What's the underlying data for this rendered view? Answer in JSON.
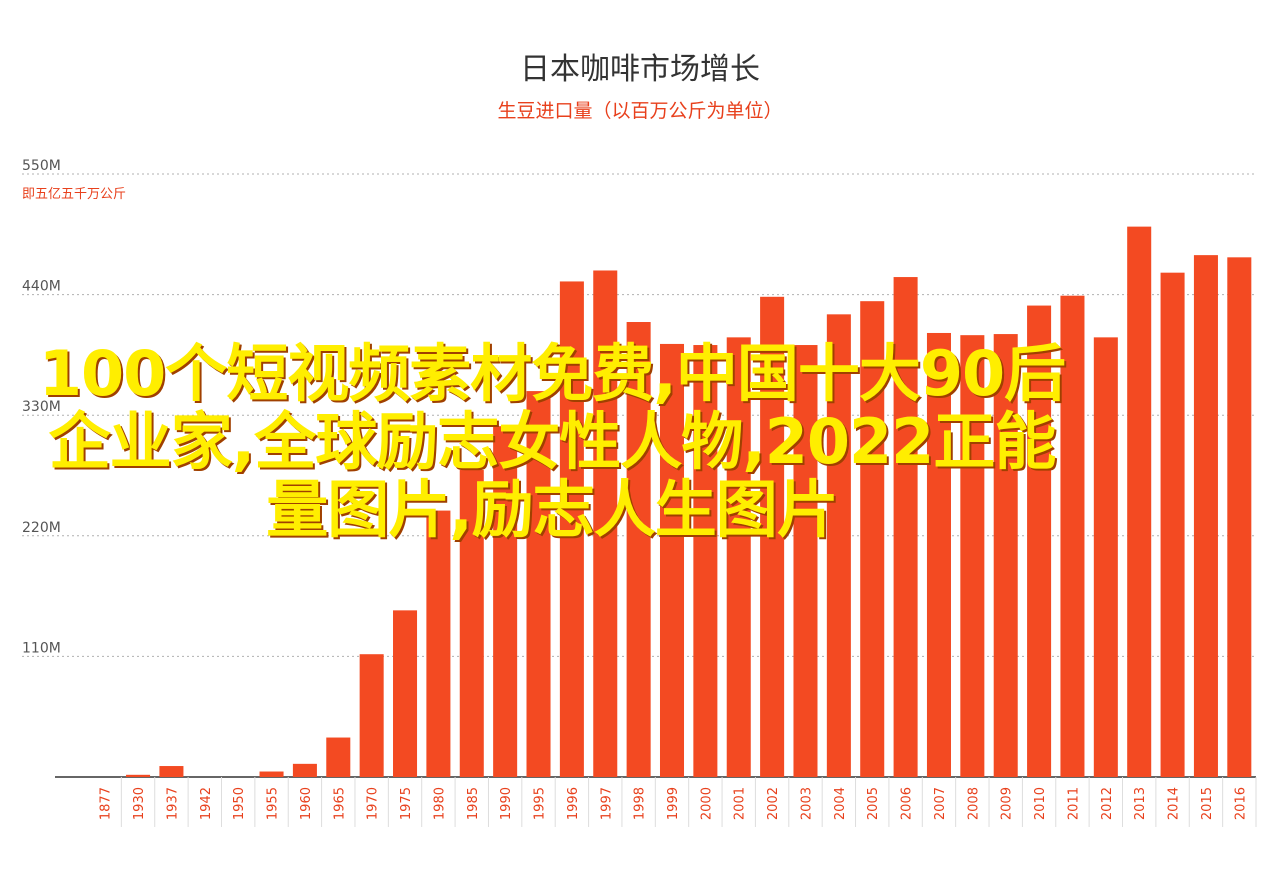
{
  "chart_data": {
    "type": "bar",
    "title": "日本咖啡市场增长",
    "subtitle": "生豆进口量（以百万公斤为单位）",
    "y_unit_note": "即五亿五千万公斤",
    "ylim": [
      0,
      550
    ],
    "ytick_values": [
      110,
      220,
      330,
      440,
      550
    ],
    "ytick_labels": [
      "110M",
      "220M",
      "330M",
      "440M",
      "550M"
    ],
    "grid": true,
    "bar_color": "#f34a22",
    "categories": [
      "1877",
      "1930",
      "1937",
      "1942",
      "1950",
      "1955",
      "1960",
      "1965",
      "1970",
      "1975",
      "1980",
      "1985",
      "1990",
      "1995",
      "1996",
      "1997",
      "1998",
      "1999",
      "2000",
      "2001",
      "2002",
      "2003",
      "2004",
      "2005",
      "2006",
      "2007",
      "2008",
      "2009",
      "2010",
      "2011",
      "2012",
      "2013",
      "2014",
      "2015",
      "2016"
    ],
    "values": [
      0,
      2,
      10,
      0,
      0,
      5,
      12,
      36,
      112,
      152,
      243,
      280,
      320,
      352,
      452,
      462,
      415,
      395,
      394,
      401,
      438,
      394,
      422,
      434,
      456,
      405,
      403,
      404,
      430,
      439,
      401,
      502,
      460,
      476,
      474
    ]
  },
  "overlay_text": "100个短视频素材免费,中国十大90后企业家,全球励志女性人物,2022正能量图片,励志人生图片"
}
